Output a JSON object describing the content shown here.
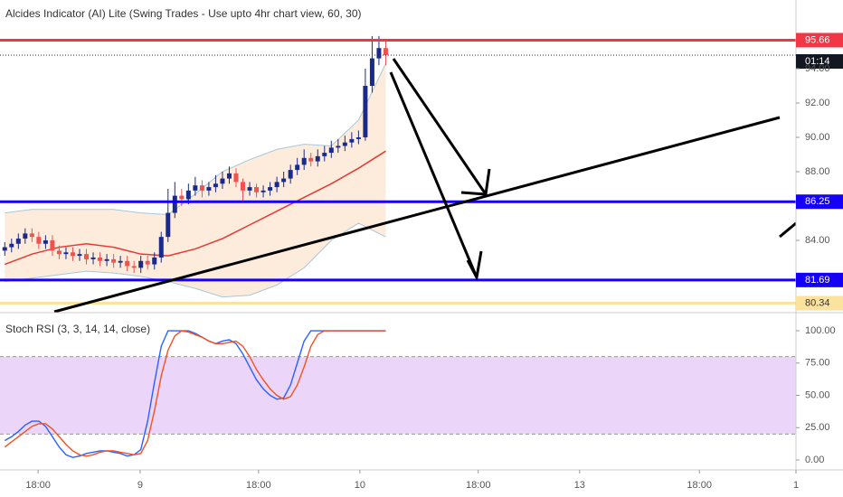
{
  "chart_data": [
    {
      "type": "candlestick",
      "title": "Alcides Indicator (AI) Lite (Swing Trades - Use upto 4hr chart view, 60, 30)",
      "up_color": "#1a2a8a",
      "down_color": "#ef5350",
      "open": [
        83.4,
        83.6,
        83.8,
        84.1,
        84.4,
        84.2,
        83.8,
        84.0,
        83.4,
        83.2,
        83.3,
        83.1,
        83.2,
        82.9,
        83.0,
        82.8,
        82.9,
        82.7,
        82.8,
        82.5,
        82.4,
        82.8,
        82.6,
        83.0,
        84.2,
        85.6,
        86.6,
        86.4,
        86.9,
        87.2,
        86.9,
        87.1,
        87.3,
        87.6,
        87.9,
        87.4,
        86.9,
        87.1,
        86.8,
        86.9,
        87.1,
        87.4,
        87.6,
        88.1,
        88.4,
        88.8,
        88.6,
        88.9,
        89.1,
        89.4,
        89.5,
        89.7,
        89.9,
        90.0,
        93.0,
        94.6,
        95.2
      ],
      "high": [
        83.9,
        84.1,
        84.4,
        84.7,
        84.7,
        84.5,
        84.3,
        84.3,
        83.7,
        83.6,
        83.6,
        83.5,
        83.5,
        83.3,
        83.3,
        83.2,
        83.2,
        83.1,
        83.1,
        82.8,
        83.1,
        83.1,
        83.3,
        84.5,
        87.0,
        87.4,
        87.0,
        87.3,
        87.7,
        87.5,
        87.4,
        87.8,
        88.0,
        88.3,
        88.2,
        87.6,
        87.4,
        87.3,
        87.2,
        87.4,
        87.7,
        88.0,
        88.4,
        88.8,
        89.3,
        89.1,
        89.3,
        89.5,
        89.8,
        89.9,
        90.1,
        90.3,
        90.4,
        94.0,
        95.9,
        95.9,
        95.7
      ],
      "low": [
        83.1,
        83.3,
        83.5,
        83.8,
        83.9,
        83.5,
        83.5,
        83.1,
        82.9,
        82.9,
        82.8,
        82.8,
        82.6,
        82.6,
        82.5,
        82.5,
        82.4,
        82.4,
        82.2,
        82.1,
        82.1,
        82.3,
        82.3,
        82.7,
        83.9,
        85.3,
        86.0,
        86.1,
        86.6,
        86.5,
        86.6,
        86.8,
        87.0,
        87.3,
        87.1,
        86.2,
        86.6,
        86.5,
        86.5,
        86.6,
        86.8,
        87.1,
        87.3,
        87.8,
        88.1,
        88.3,
        88.3,
        88.6,
        88.8,
        89.1,
        89.2,
        89.4,
        89.6,
        89.8,
        92.6,
        94.2,
        94.2
      ],
      "close": [
        83.6,
        83.8,
        84.1,
        84.4,
        84.2,
        83.8,
        84.0,
        83.4,
        83.2,
        83.3,
        83.1,
        83.2,
        82.9,
        83.0,
        82.8,
        82.9,
        82.7,
        82.8,
        82.5,
        82.4,
        82.8,
        82.6,
        83.0,
        84.2,
        85.6,
        86.6,
        86.4,
        86.9,
        87.2,
        86.9,
        87.1,
        87.3,
        87.6,
        87.9,
        87.4,
        86.9,
        87.1,
        86.8,
        86.9,
        87.1,
        87.4,
        87.6,
        88.1,
        88.4,
        88.8,
        88.6,
        88.9,
        89.1,
        89.4,
        89.5,
        89.7,
        89.9,
        90.0,
        93.0,
        94.6,
        95.2,
        94.79
      ],
      "bands": {
        "x": [
          0,
          4,
          8,
          12,
          16,
          20,
          24,
          28,
          32,
          36,
          40,
          44,
          48,
          52,
          56
        ],
        "upper": [
          85.6,
          85.8,
          85.8,
          85.8,
          85.8,
          85.6,
          85.5,
          86.7,
          88.0,
          88.7,
          89.3,
          89.6,
          89.5,
          91.0,
          94.3
        ],
        "basis": [
          82.6,
          83.2,
          83.6,
          83.8,
          83.6,
          83.2,
          83.1,
          83.5,
          84.1,
          84.9,
          85.7,
          86.5,
          87.3,
          88.2,
          89.2
        ],
        "lower": [
          81.6,
          81.8,
          82.0,
          82.2,
          82.1,
          81.9,
          81.6,
          81.2,
          80.7,
          80.8,
          81.4,
          82.4,
          84.0,
          85.0,
          84.2
        ],
        "band_color": "#a7c7d9",
        "basis_color": "#e53935",
        "fill_color": "#fde7d3"
      },
      "levels": [
        {
          "value": 95.66,
          "color": "#f23645",
          "text_color": "#ffffff"
        },
        {
          "value": 86.25,
          "color": "#1500f5",
          "text_color": "#ffffff"
        },
        {
          "value": 81.69,
          "color": "#1500f5",
          "text_color": "#ffffff"
        },
        {
          "value": 80.34,
          "color": "#fbe29f",
          "text_color": "#333333"
        }
      ],
      "current_price": 94.79,
      "countdown": "01:14",
      "xlim": [
        -0.7,
        116.3
      ],
      "ylim": [
        79.84,
        98
      ],
      "yticks": [
        {
          "value": 84,
          "label": "84.00"
        },
        {
          "value": 88,
          "label": "88.00"
        },
        {
          "value": 90,
          "label": "90.00"
        },
        {
          "value": 92,
          "label": "92.00"
        },
        {
          "value": 94,
          "label": "94.00"
        }
      ]
    },
    {
      "type": "line",
      "title": "Stoch RSI (3, 3, 14, 14, close)",
      "series": [
        {
          "color": "#2962ff",
          "values": [
            15,
            18,
            22,
            27,
            30,
            30,
            26,
            18,
            10,
            4,
            2,
            3,
            5,
            6,
            7,
            7,
            6,
            5,
            3,
            4,
            8,
            30,
            60,
            88,
            100,
            100,
            100,
            100,
            98,
            95,
            92,
            90,
            92,
            93,
            90,
            82,
            72,
            62,
            55,
            50,
            47,
            48,
            58,
            75,
            92,
            100,
            100,
            100,
            100,
            100,
            100,
            100,
            100,
            100,
            100,
            100,
            100
          ]
        },
        {
          "color": "#f4511e",
          "values": [
            10,
            14,
            18,
            22,
            26,
            28,
            28,
            24,
            18,
            12,
            7,
            4,
            3,
            4,
            6,
            7,
            7,
            6,
            5,
            4,
            5,
            15,
            38,
            65,
            85,
            96,
            100,
            99,
            97,
            95,
            92,
            90,
            90,
            91,
            92,
            88,
            80,
            70,
            62,
            55,
            50,
            47,
            49,
            58,
            72,
            88,
            97,
            100,
            100,
            100,
            100,
            100,
            100,
            100,
            100,
            100,
            100
          ]
        }
      ],
      "band": [
        20,
        80
      ],
      "band_color": "#e6ccf7",
      "xlim": [
        -0.7,
        116.3
      ],
      "ylim": [
        -7.7,
        113.3
      ],
      "yticks": [
        {
          "value": 0,
          "label": "0.00"
        },
        {
          "value": 25,
          "label": "25.00"
        },
        {
          "value": 50,
          "label": "50.00"
        },
        {
          "value": 75,
          "label": "75.00"
        },
        {
          "value": 100,
          "label": "100.00"
        }
      ],
      "xticks": [
        {
          "value": 4.9,
          "label": "18:00"
        },
        {
          "value": 19.9,
          "label": "9"
        },
        {
          "value": 37.3,
          "label": "18:00"
        },
        {
          "value": 52.2,
          "label": "10"
        },
        {
          "value": 69.6,
          "label": "18:00"
        },
        {
          "value": 84.5,
          "label": "13"
        },
        {
          "value": 102.1,
          "label": "18:00"
        },
        {
          "value": 116.3,
          "label": "1"
        }
      ]
    }
  ]
}
